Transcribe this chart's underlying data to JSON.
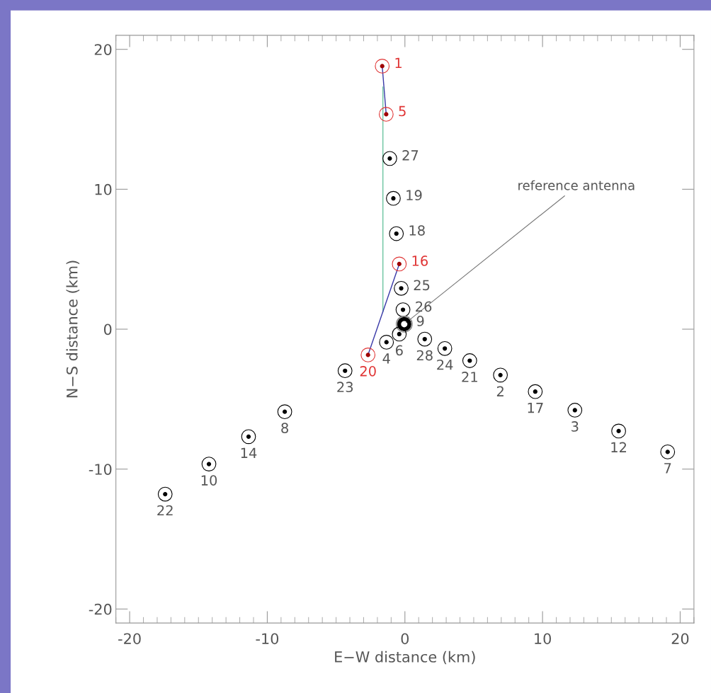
{
  "chart_data": {
    "type": "scatter",
    "xlabel": "E−W distance (km)",
    "ylabel": "N−S distance (km)",
    "xlim": [
      -21,
      21
    ],
    "ylim": [
      -21,
      21
    ],
    "xticks": [
      -20,
      -10,
      0,
      10,
      20
    ],
    "yticks": [
      -20,
      -10,
      0,
      10,
      20
    ],
    "grid": false,
    "marker": "circle",
    "legend": false,
    "series": [
      {
        "name": "1",
        "color": "#e03535",
        "x": [
          -1.65
        ],
        "values": [
          18.8
        ]
      },
      {
        "name": "5",
        "color": "#e03535",
        "x": [
          -1.36
        ],
        "values": [
          15.36
        ]
      },
      {
        "name": "27",
        "color": "#000000",
        "x": [
          -1.1
        ],
        "values": [
          12.2
        ]
      },
      {
        "name": "19",
        "color": "#000000",
        "x": [
          -0.84
        ],
        "values": [
          9.35
        ]
      },
      {
        "name": "18",
        "color": "#000000",
        "x": [
          -0.62
        ],
        "values": [
          6.83
        ]
      },
      {
        "name": "16",
        "color": "#e03535",
        "x": [
          -0.41
        ],
        "values": [
          4.66
        ]
      },
      {
        "name": "25",
        "color": "#000000",
        "x": [
          -0.27
        ],
        "values": [
          2.92
        ]
      },
      {
        "name": "26",
        "color": "#000000",
        "x": [
          -0.14
        ],
        "values": [
          1.39
        ]
      },
      {
        "name": "9",
        "color": "#000000",
        "x": [
          -0.05
        ],
        "values": [
          0.36
        ]
      },
      {
        "name": "6",
        "color": "#000000",
        "x": [
          -0.41
        ],
        "values": [
          -0.35
        ]
      },
      {
        "name": "4",
        "color": "#000000",
        "x": [
          -1.34
        ],
        "values": [
          -0.93
        ]
      },
      {
        "name": "20",
        "color": "#e03535",
        "x": [
          -2.68
        ],
        "values": [
          -1.84
        ]
      },
      {
        "name": "28",
        "color": "#000000",
        "x": [
          1.44
        ],
        "values": [
          -0.71
        ]
      },
      {
        "name": "24",
        "color": "#000000",
        "x": [
          2.9
        ],
        "values": [
          -1.38
        ]
      },
      {
        "name": "21",
        "color": "#000000",
        "x": [
          4.71
        ],
        "values": [
          -2.25
        ]
      },
      {
        "name": "2",
        "color": "#000000",
        "x": [
          6.94
        ],
        "values": [
          -3.28
        ]
      },
      {
        "name": "17",
        "color": "#000000",
        "x": [
          9.47
        ],
        "values": [
          -4.46
        ]
      },
      {
        "name": "3",
        "color": "#000000",
        "x": [
          12.35
        ],
        "values": [
          -5.79
        ]
      },
      {
        "name": "12",
        "color": "#000000",
        "x": [
          15.53
        ],
        "values": [
          -7.28
        ]
      },
      {
        "name": "7",
        "color": "#000000",
        "x": [
          19.09
        ],
        "values": [
          -8.77
        ]
      },
      {
        "name": "23",
        "color": "#000000",
        "x": [
          -4.35
        ],
        "values": [
          -2.97
        ]
      },
      {
        "name": "8",
        "color": "#000000",
        "x": [
          -8.73
        ],
        "values": [
          -5.9
        ]
      },
      {
        "name": "14",
        "color": "#000000",
        "x": [
          -11.36
        ],
        "values": [
          -7.68
        ]
      },
      {
        "name": "10",
        "color": "#000000",
        "x": [
          -14.24
        ],
        "values": [
          -9.64
        ]
      },
      {
        "name": "22",
        "color": "#000000",
        "x": [
          -17.42
        ],
        "values": [
          -11.79
        ]
      },
      {
        "type": "line",
        "marker": "none",
        "color": "#3a3aa8",
        "x": [
          -1.65,
          -1.36
        ],
        "values": [
          18.8,
          15.36
        ]
      },
      {
        "type": "line",
        "marker": "none",
        "color": "#6cc4a0",
        "x": [
          -1.6,
          -1.6
        ],
        "values": [
          17.3,
          1.24
        ]
      },
      {
        "type": "line",
        "marker": "none",
        "color": "#3a3aa8",
        "x": [
          -0.41,
          -2.68
        ],
        "values": [
          4.66,
          -1.84
        ]
      }
    ],
    "annotations": [
      {
        "text": "reference antenna",
        "x": -0.05,
        "y": 0.36
      }
    ]
  }
}
